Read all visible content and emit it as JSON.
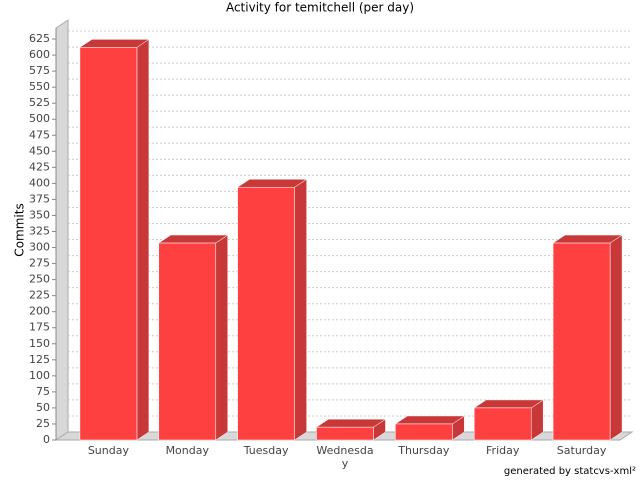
{
  "chart_data": {
    "type": "bar3d",
    "title": "Activity for temitchell (per day)",
    "y_label": "Commits",
    "categories": [
      "Sunday",
      "Monday",
      "Tuesday",
      "Wednesday",
      "Thursday",
      "Friday",
      "Saturday"
    ],
    "values": [
      612,
      307,
      394,
      20,
      25,
      50,
      307
    ],
    "color": "#ff4040",
    "ylim": [
      0,
      650
    ],
    "yticks": [
      0,
      25,
      50,
      75,
      100,
      125,
      150,
      175,
      200,
      225,
      250,
      275,
      300,
      325,
      350,
      375,
      400,
      425,
      450,
      475,
      500,
      525,
      550,
      575,
      600,
      625
    ],
    "grid": true,
    "footer": "generated by statcvs-xml²"
  }
}
